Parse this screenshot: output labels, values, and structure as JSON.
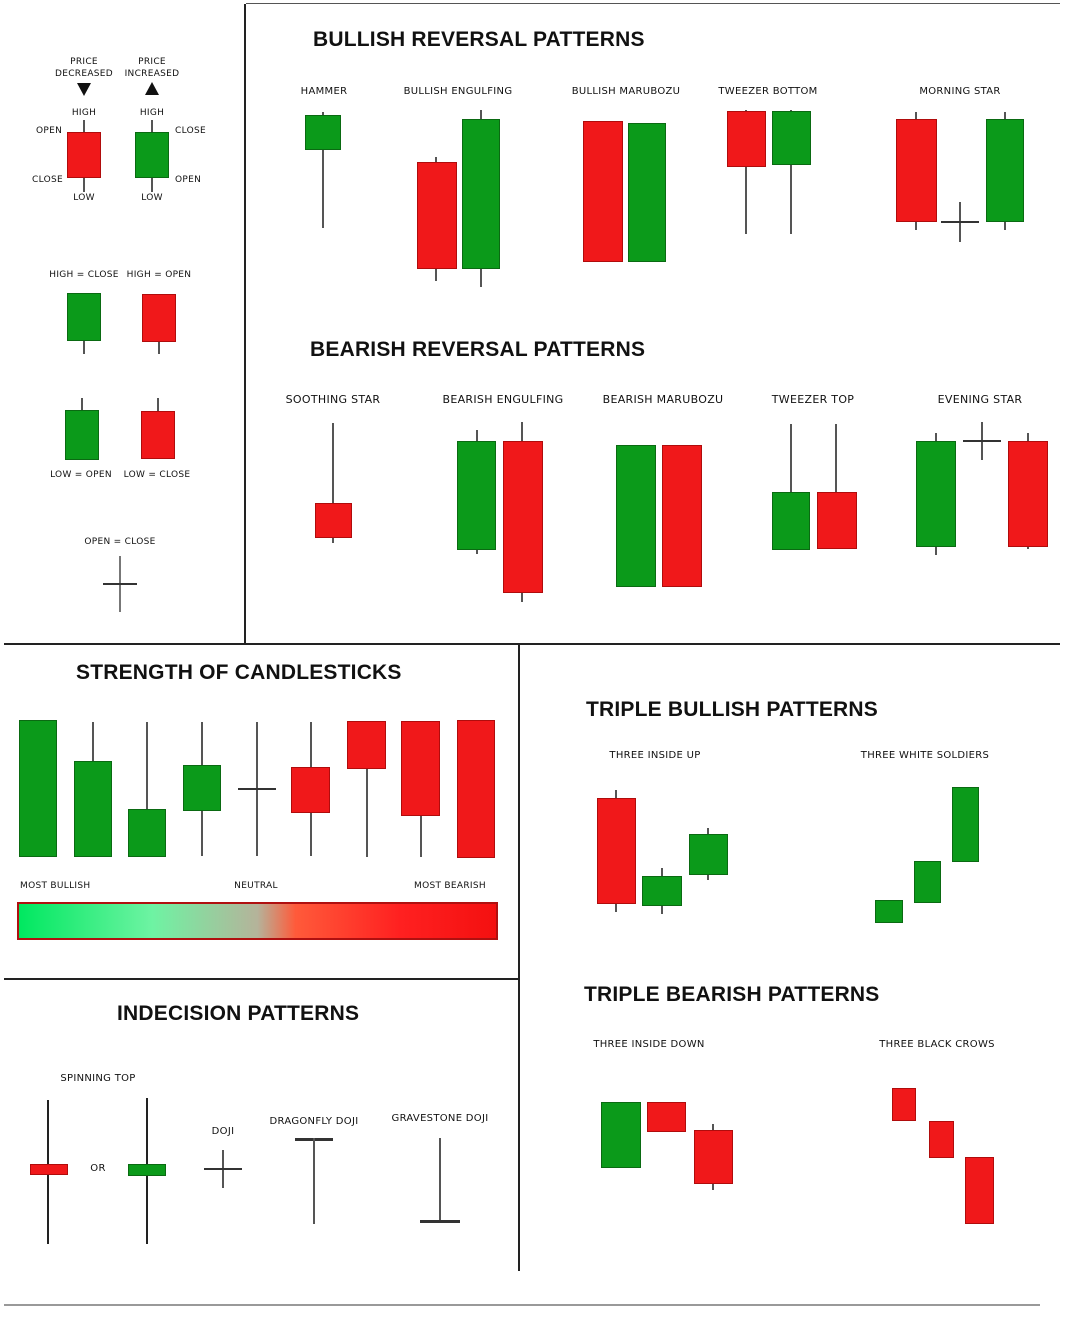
{
  "legend": {
    "price_decreased": "PRICE DECREASED",
    "price_increased": "PRICE INCREASED",
    "high": "HIGH",
    "low": "LOW",
    "open": "OPEN",
    "close": "CLOSE",
    "high_close": "HIGH = CLOSE",
    "high_open": "HIGH = OPEN",
    "low_open": "LOW = OPEN",
    "low_close": "LOW = CLOSE",
    "open_close": "OPEN = CLOSE"
  },
  "bullish": {
    "title": "BULLISH REVERSAL PATTERNS",
    "patterns": [
      "HAMMER",
      "BULLISH ENGULFING",
      "BULLISH MARUBOZU",
      "TWEEZER BOTTOM",
      "MORNING STAR"
    ]
  },
  "bearish": {
    "title": "BEARISH REVERSAL PATTERNS",
    "patterns": [
      "SOOTHING STAR",
      "BEARISH ENGULFING",
      "BEARISH MARUBOZU",
      "TWEEZER TOP",
      "EVENING STAR"
    ]
  },
  "strength": {
    "title": "STRENGTH OF CANDLESTICKS",
    "most_bullish": "MOST BULLISH",
    "neutral": "NEUTRAL",
    "most_bearish": "MOST BEARISH"
  },
  "indecision": {
    "title": "INDECISION PATTERNS",
    "spinning_top": "SPINNING TOP",
    "or": "OR",
    "doji": "DOJI",
    "dragonfly": "DRAGONFLY DOJI",
    "gravestone": "GRAVESTONE DOJI"
  },
  "triple_bullish": {
    "title": "TRIPLE BULLISH PATTERNS",
    "patterns": [
      "THREE INSIDE UP",
      "THREE WHITE SOLDIERS"
    ]
  },
  "triple_bearish": {
    "title": "TRIPLE BEARISH PATTERNS",
    "patterns": [
      "THREE INSIDE DOWN",
      "THREE BLACK CROWS"
    ]
  },
  "colors": {
    "bullish": "#0b9a1a",
    "bearish": "#f0181a"
  }
}
